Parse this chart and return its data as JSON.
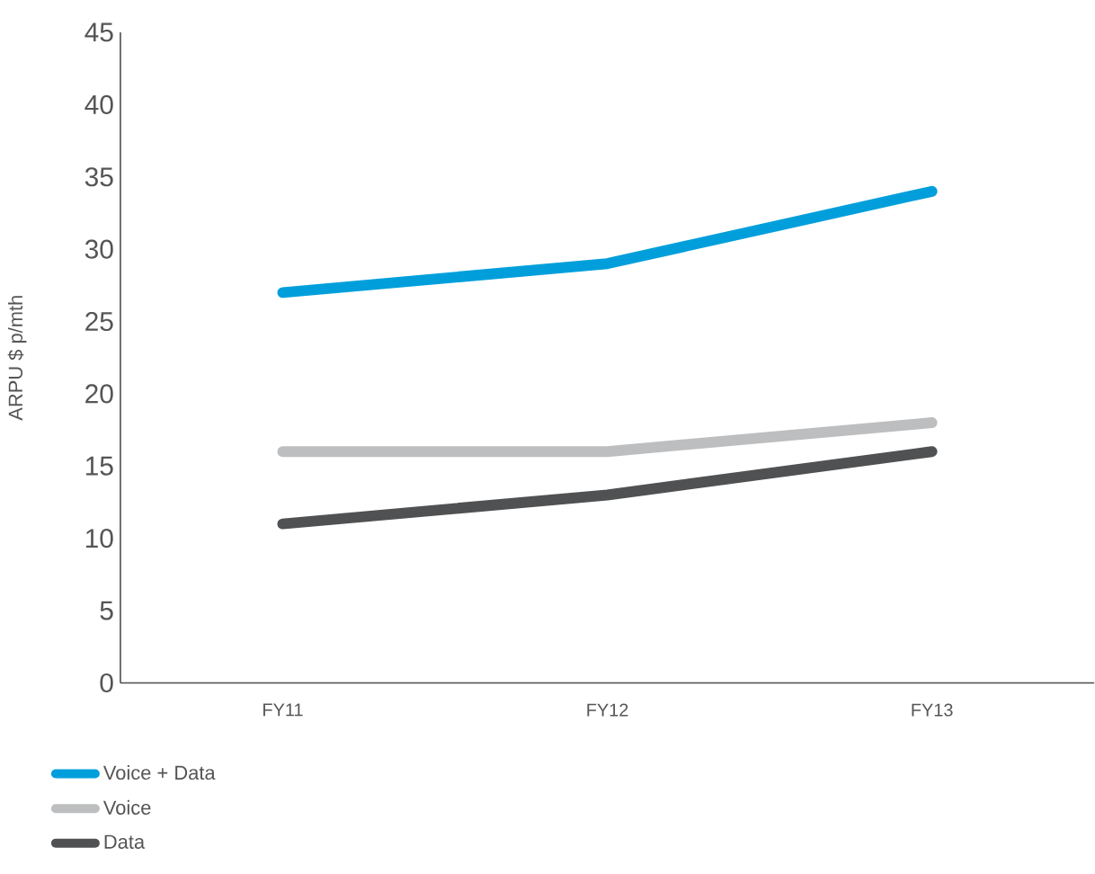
{
  "chart_data": {
    "type": "line",
    "ylabel": "ARPU $ p/mth",
    "categories": [
      "FY11",
      "FY12",
      "FY13"
    ],
    "series": [
      {
        "name": "Voice + Data",
        "color": "#009fdb",
        "values": [
          27,
          29,
          34
        ]
      },
      {
        "name": "Voice",
        "color": "#bdbebf",
        "values": [
          16,
          16,
          18
        ]
      },
      {
        "name": "Data",
        "color": "#505153",
        "values": [
          11,
          13,
          16
        ]
      }
    ],
    "ylim": [
      0,
      45
    ],
    "yticks": [
      0,
      5,
      10,
      15,
      20,
      25,
      30,
      35,
      40,
      45
    ],
    "grid": false,
    "legend": "bottom left",
    "marker": "none",
    "line_style": "solid"
  }
}
